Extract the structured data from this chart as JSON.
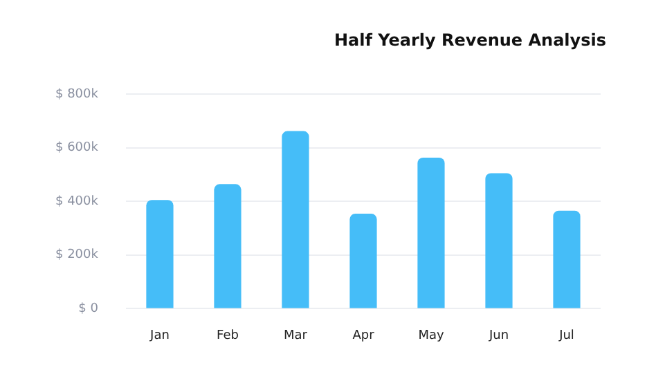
{
  "chart_data": {
    "type": "bar",
    "title": "Half Yearly Revenue Analysis",
    "categories": [
      "Jan",
      "Feb",
      "Mar",
      "Apr",
      "May",
      "Jun",
      "Jul"
    ],
    "values": [
      405000,
      464000,
      662000,
      354000,
      563000,
      505000,
      365000
    ],
    "color": "#45bdf8",
    "ylim": [
      0,
      800000
    ],
    "yticks": [
      {
        "value": 0,
        "label": "$ 0"
      },
      {
        "value": 200000,
        "label": "$ 200k"
      },
      {
        "value": 400000,
        "label": "$ 400k"
      },
      {
        "value": 600000,
        "label": "$ 600k"
      },
      {
        "value": 800000,
        "label": "$ 800k"
      }
    ],
    "grid": "y"
  }
}
